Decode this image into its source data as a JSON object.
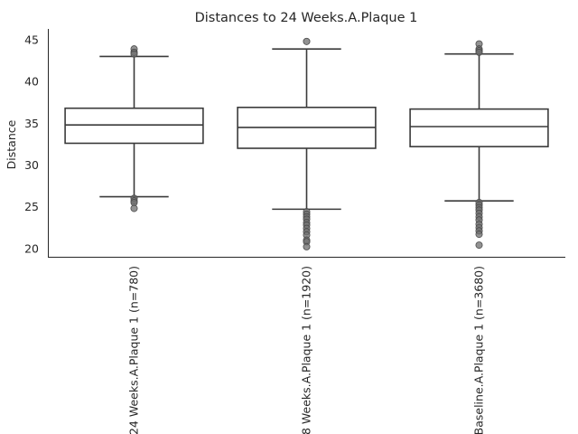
{
  "chart_data": {
    "type": "box",
    "title": "Distances to 24 Weeks.A.Plaque 1",
    "xlabel": "",
    "ylabel": "Distance",
    "ylim": [
      19,
      46.3
    ],
    "yticks": [
      20,
      25,
      30,
      35,
      40,
      45
    ],
    "grid": false,
    "categories": [
      "24 Weeks.A.Plaque 1 (n=780)",
      "8 Weeks.A.Plaque 1 (n=1920)",
      "Baseline.A.Plaque 1 (n=3680)"
    ],
    "boxes": [
      {
        "category": "24 Weeks.A.Plaque 1 (n=780)",
        "whisker_low": 26.2,
        "q1": 32.6,
        "median": 34.8,
        "q3": 36.8,
        "whisker_high": 43.0,
        "outliers": [
          43.9,
          43.5,
          43.3,
          26.0,
          25.7,
          25.5,
          24.8
        ]
      },
      {
        "category": "8 Weeks.A.Plaque 1 (n=1920)",
        "whisker_low": 24.7,
        "q1": 32.0,
        "median": 34.5,
        "q3": 36.9,
        "whisker_high": 43.9,
        "outliers": [
          44.8,
          24.4,
          24.1,
          23.8,
          23.5,
          23.1,
          22.8,
          22.4,
          22.0,
          21.6,
          21.0,
          20.8,
          20.2
        ]
      },
      {
        "category": "Baseline.A.Plaque 1 (n=3680)",
        "whisker_low": 25.7,
        "q1": 32.2,
        "median": 34.6,
        "q3": 36.7,
        "whisker_high": 43.3,
        "outliers": [
          44.5,
          43.9,
          43.7,
          43.5,
          25.5,
          25.2,
          24.9,
          24.6,
          24.2,
          23.8,
          23.4,
          22.9,
          22.5,
          22.1,
          21.7,
          20.4
        ]
      }
    ]
  }
}
